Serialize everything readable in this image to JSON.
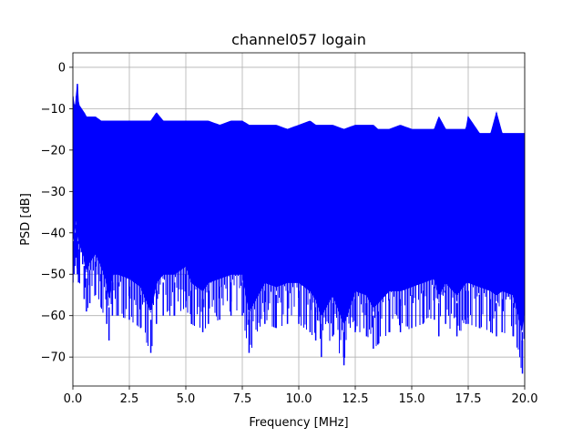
{
  "chart_data": {
    "type": "line",
    "title": "channel057 logain",
    "xlabel": "Frequency [MHz]",
    "ylabel": "PSD [dB]",
    "xlim": [
      0,
      20
    ],
    "ylim": [
      -77,
      3.5
    ],
    "xticks": [
      0,
      2.5,
      5,
      7.5,
      10,
      12.5,
      15,
      17.5,
      20
    ],
    "xtick_labels": [
      "0.0",
      "2.5",
      "5.0",
      "7.5",
      "10.0",
      "12.5",
      "15.0",
      "17.5",
      "20.0"
    ],
    "yticks": [
      0,
      -10,
      -20,
      -30,
      -40,
      -50,
      -60,
      -70
    ],
    "ytick_labels": [
      "0",
      "−10",
      "−20",
      "−30",
      "−40",
      "−50",
      "−60",
      "−70"
    ],
    "grid": true,
    "series": [
      {
        "color": "#0000ff",
        "x": [
          0,
          0.05,
          0.1,
          0.15,
          0.2,
          0.25,
          0.5,
          0.6,
          0.75,
          1.0,
          1.25,
          1.5,
          1.6,
          1.75,
          2.0,
          2.5,
          3.0,
          3.45,
          3.7,
          4.0,
          4.5,
          5.0,
          5.25,
          5.75,
          6.0,
          6.5,
          7.0,
          7.5,
          7.8,
          8.5,
          9.0,
          9.5,
          10.0,
          10.5,
          10.75,
          11.0,
          11.5,
          12.0,
          12.5,
          13.0,
          13.3,
          13.5,
          14.0,
          14.5,
          15.0,
          15.5,
          16.0,
          16.2,
          16.5,
          17.0,
          17.4,
          17.5,
          18.0,
          18.5,
          18.75,
          19.0,
          19.5,
          19.9,
          20.0
        ],
        "max": [
          -7,
          -9,
          -10,
          -7,
          -4,
          -9,
          -11,
          -12,
          -12,
          -12,
          -13,
          -13,
          -13,
          -13,
          -13,
          -13,
          -13,
          -13,
          -11,
          -13,
          -13,
          -13,
          -13,
          -13,
          -13,
          -14,
          -13,
          -13,
          -14,
          -14,
          -14,
          -15,
          -14,
          -13,
          -14,
          -14,
          -14,
          -15,
          -14,
          -14,
          -14,
          -15,
          -15,
          -14,
          -15,
          -15,
          -15,
          -12,
          -15,
          -15,
          -15,
          -12,
          -16,
          -16,
          -11,
          -16,
          -16,
          -16,
          -16
        ],
        "min": [
          -52,
          -50,
          -48,
          -46,
          -50,
          -52,
          -56,
          -59,
          -57,
          -55,
          -58,
          -62,
          -66,
          -60,
          -60,
          -61,
          -63,
          -69,
          -62,
          -60,
          -60,
          -58,
          -62,
          -64,
          -62,
          -61,
          -60,
          -60,
          -69,
          -62,
          -63,
          -62,
          -62,
          -64,
          -66,
          -70,
          -65,
          -72,
          -64,
          -65,
          -68,
          -67,
          -64,
          -64,
          -63,
          -62,
          -61,
          -65,
          -62,
          -65,
          -62,
          -62,
          -63,
          -64,
          -65,
          -64,
          -65,
          -74,
          -60
        ]
      }
    ]
  }
}
